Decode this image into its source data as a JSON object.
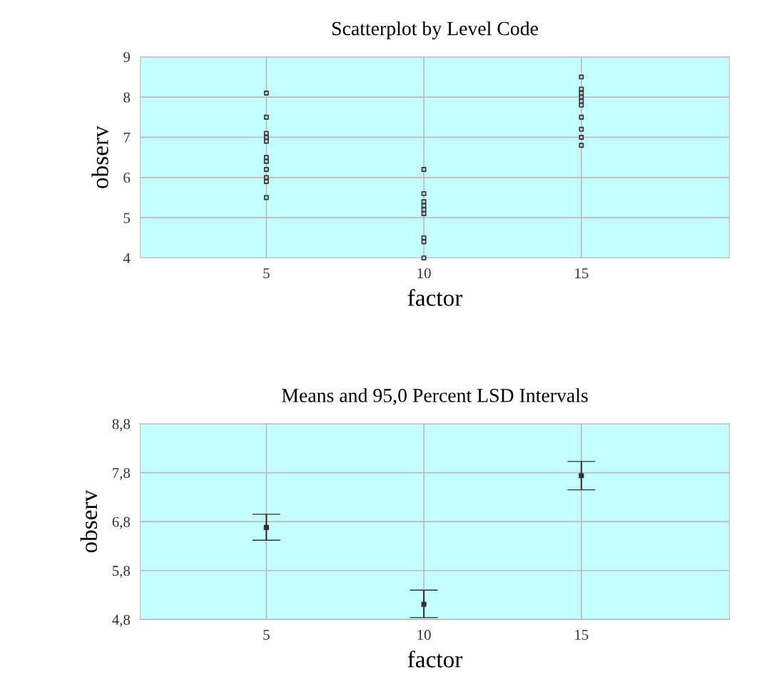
{
  "chart_data": [
    {
      "type": "scatter",
      "title": "Scatterplot by Level Code",
      "xlabel": "factor",
      "ylabel": "observ",
      "xlim": [
        1,
        19.7
      ],
      "xticks": [
        5,
        10,
        15
      ],
      "ylim": [
        4,
        9
      ],
      "yticks": [
        4,
        5,
        6,
        7,
        8,
        9
      ],
      "grid": true,
      "marker": "square",
      "x": [
        5,
        5,
        5,
        5,
        5,
        5,
        5,
        5,
        5,
        5,
        5,
        10,
        10,
        10,
        10,
        10,
        10,
        10,
        10,
        10,
        15,
        15,
        15,
        15,
        15,
        15,
        15,
        15,
        15,
        15
      ],
      "series": [
        {
          "color": "#333333",
          "values": [
            8.1,
            7.5,
            7.1,
            7.0,
            6.9,
            6.5,
            6.4,
            6.2,
            6.0,
            5.9,
            5.5,
            6.2,
            5.6,
            5.4,
            5.3,
            5.2,
            5.1,
            4.5,
            4.4,
            4.0,
            8.5,
            8.2,
            8.1,
            8.0,
            7.9,
            7.8,
            7.5,
            7.2,
            7.0,
            6.8
          ]
        }
      ]
    },
    {
      "type": "scatter",
      "title": "Means and 95,0 Percent LSD Intervals",
      "xlabel": "factor",
      "ylabel": "observ",
      "xlim": [
        1,
        19.7
      ],
      "xticks": [
        5,
        10,
        15
      ],
      "ylim": [
        4.8,
        8.8
      ],
      "yticks": [
        {
          "value": 4.8,
          "label": "4,8"
        },
        {
          "value": 5.8,
          "label": "5,8"
        },
        {
          "value": 6.8,
          "label": "6,8"
        },
        {
          "value": 7.8,
          "label": "7,8"
        },
        {
          "value": 8.8,
          "label": "8,8"
        }
      ],
      "grid": true,
      "marker": "square",
      "x": [
        5,
        10,
        15
      ],
      "color": "#333333",
      "values": [
        6.68,
        5.11,
        7.74
      ],
      "errors": [
        [
          6.42,
          6.95
        ],
        [
          4.84,
          5.4
        ],
        [
          7.45,
          8.03
        ]
      ]
    }
  ]
}
